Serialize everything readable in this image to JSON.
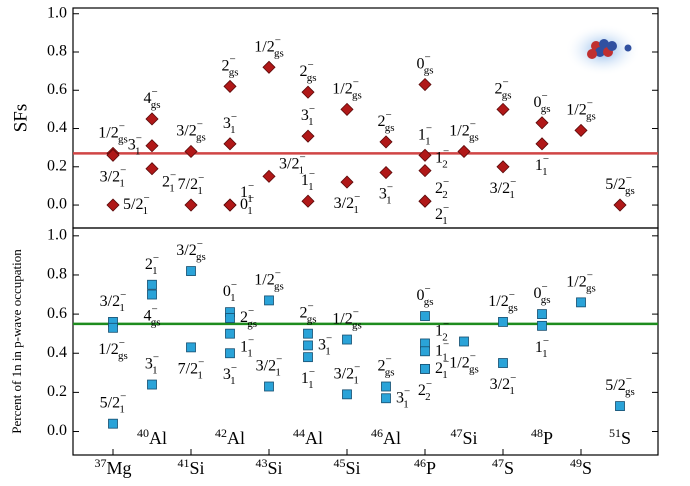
{
  "chart_data": [
    {
      "type": "scatter",
      "ylabel": "SFs",
      "ylim": [
        -0.12,
        1.03
      ],
      "yticks": [
        {
          "value": 0,
          "label": "0.0"
        },
        0.2,
        0.4,
        0.6,
        0.8,
        {
          "value": 1,
          "label": "1.0"
        }
      ],
      "marker": "diamond",
      "color": "#b01818",
      "hline": {
        "value": 0.27,
        "color": "#d04545"
      },
      "groups": [
        [
          {
            "value": 0.27,
            "j": "1/2",
            "parity": "−",
            "sub": "gs"
          },
          {
            "value": 0.26,
            "j": "3/2",
            "parity": "−",
            "sub": "1"
          },
          {
            "value": 0.0,
            "j": "5/2",
            "parity": "−",
            "sub": "1"
          }
        ],
        [
          {
            "value": 0.45,
            "j": "4",
            "parity": "−",
            "sub": "gs"
          },
          {
            "value": 0.31,
            "j": "3",
            "parity": "−",
            "sub": "1"
          },
          {
            "value": 0.19,
            "j": "2",
            "parity": "−",
            "sub": "1"
          }
        ],
        [
          {
            "value": 0.28,
            "j": "3/2",
            "parity": "−",
            "sub": "gs"
          },
          {
            "value": 0.0,
            "j": "7/2",
            "parity": "−",
            "sub": "1"
          }
        ],
        [
          {
            "value": 0.62,
            "j": "2",
            "parity": "−",
            "sub": "gs"
          },
          {
            "value": 0.32,
            "j": "3",
            "parity": "−",
            "sub": "1"
          },
          {
            "value": 0.0,
            "j": "1",
            "parity": "−",
            "sub": "1"
          },
          {
            "value": 0.0,
            "j": "0",
            "parity": "−",
            "sub": "1"
          }
        ],
        [
          {
            "value": 0.72,
            "j": "1/2",
            "parity": "−",
            "sub": "gs"
          },
          {
            "value": 0.15,
            "j": "3/2",
            "parity": "−",
            "sub": "1"
          }
        ],
        [
          {
            "value": 0.59,
            "j": "2",
            "parity": "−",
            "sub": "gs"
          },
          {
            "value": 0.36,
            "j": "3",
            "parity": "−",
            "sub": "1"
          },
          {
            "value": 0.02,
            "j": "1",
            "parity": "−",
            "sub": "1"
          }
        ],
        [
          {
            "value": 0.5,
            "j": "1/2",
            "parity": "−",
            "sub": "gs"
          },
          {
            "value": 0.12,
            "j": "3/2",
            "parity": "−",
            "sub": "1"
          }
        ],
        [
          {
            "value": 0.33,
            "j": "2",
            "parity": "−",
            "sub": "gs"
          },
          {
            "value": 0.17,
            "j": "3",
            "parity": "−",
            "sub": "1"
          }
        ],
        [
          {
            "value": 0.63,
            "j": "0",
            "parity": "−",
            "sub": "gs"
          },
          {
            "value": 0.26,
            "j": "1",
            "parity": "−",
            "sub": "1"
          },
          {
            "value": 0.18,
            "j": "1",
            "parity": "−",
            "sub": "2"
          },
          {
            "value": 0.02,
            "j": "2",
            "parity": "−",
            "sub": "2"
          },
          {
            "value": 0.02,
            "j": "2",
            "parity": "−",
            "sub": "1"
          }
        ],
        [
          {
            "value": 0.28,
            "j": "1/2",
            "parity": "−",
            "sub": "gs"
          }
        ],
        [
          {
            "value": 0.5,
            "j": "2",
            "parity": "−",
            "sub": "gs"
          },
          {
            "value": 0.2,
            "j": "3/2",
            "parity": "−",
            "sub": "1"
          }
        ],
        [
          {
            "value": 0.43,
            "j": "0",
            "parity": "−",
            "sub": "gs"
          },
          {
            "value": 0.32,
            "j": "1",
            "parity": "−",
            "sub": "1"
          }
        ],
        [
          {
            "value": 0.39,
            "j": "1/2",
            "parity": "−",
            "sub": "gs"
          }
        ],
        [
          {
            "value": 0.0,
            "j": "5/2",
            "parity": "−",
            "sub": "gs"
          }
        ]
      ]
    },
    {
      "type": "scatter",
      "ylabel": "Percent of 1n in p-wave occupation",
      "ylim": [
        -0.12,
        1.04
      ],
      "yticks": [
        {
          "value": 0,
          "label": "0.0"
        },
        0.2,
        0.4,
        0.6,
        0.8,
        {
          "value": 1,
          "label": "1.0"
        }
      ],
      "marker": "square",
      "color": "#2aa3d8",
      "hline": {
        "value": 0.55,
        "color": "#1e8c1e"
      },
      "categories": [
        {
          "mass": "37",
          "symbol": "Mg"
        },
        {
          "mass": "40",
          "symbol": "Al"
        },
        {
          "mass": "41",
          "symbol": "Si"
        },
        {
          "mass": "42",
          "symbol": "Al"
        },
        {
          "mass": "43",
          "symbol": "Si"
        },
        {
          "mass": "44",
          "symbol": "Al"
        },
        {
          "mass": "45",
          "symbol": "Si"
        },
        {
          "mass": "46",
          "symbol": "Al"
        },
        {
          "mass": "46",
          "symbol": "P"
        },
        {
          "mass": "47",
          "symbol": "Si"
        },
        {
          "mass": "47",
          "symbol": "S"
        },
        {
          "mass": "48",
          "symbol": "P"
        },
        {
          "mass": "49",
          "symbol": "S"
        },
        {
          "mass": "51",
          "symbol": "S"
        }
      ],
      "groups": [
        [
          {
            "value": 0.56,
            "j": "3/2",
            "parity": "−",
            "sub": "1"
          },
          {
            "value": 0.53,
            "j": "1/2",
            "parity": "−",
            "sub": "gs"
          },
          {
            "value": 0.04,
            "j": "5/2",
            "parity": "−",
            "sub": "1"
          }
        ],
        [
          {
            "value": 0.75,
            "j": "2",
            "parity": "−",
            "sub": "1"
          },
          {
            "value": 0.7,
            "j": "4",
            "parity": "−",
            "sub": "gs"
          },
          {
            "value": 0.24,
            "j": "3",
            "parity": "−",
            "sub": "1"
          }
        ],
        [
          {
            "value": 0.82,
            "j": "3/2",
            "parity": "−",
            "sub": "gs"
          },
          {
            "value": 0.43,
            "j": "7/2",
            "parity": "−",
            "sub": "1"
          }
        ],
        [
          {
            "value": 0.61,
            "j": "0",
            "parity": "−",
            "sub": "1"
          },
          {
            "value": 0.58,
            "j": "2",
            "parity": "−",
            "sub": "gs"
          },
          {
            "value": 0.5,
            "j": "1",
            "parity": "−",
            "sub": "1"
          },
          {
            "value": 0.4,
            "j": "3",
            "parity": "−",
            "sub": "1"
          }
        ],
        [
          {
            "value": 0.67,
            "j": "1/2",
            "parity": "−",
            "sub": "gs"
          },
          {
            "value": 0.23,
            "j": "3/2",
            "parity": "−",
            "sub": "1"
          }
        ],
        [
          {
            "value": 0.5,
            "j": "2",
            "parity": "−",
            "sub": "gs"
          },
          {
            "value": 0.44,
            "j": "3",
            "parity": "−",
            "sub": "1"
          },
          {
            "value": 0.38,
            "j": "1",
            "parity": "−",
            "sub": "1"
          }
        ],
        [
          {
            "value": 0.47,
            "j": "1/2",
            "parity": "−",
            "sub": "gs"
          },
          {
            "value": 0.19,
            "j": "3/2",
            "parity": "−",
            "sub": "1"
          }
        ],
        [
          {
            "value": 0.23,
            "j": "2",
            "parity": "−",
            "sub": "gs"
          },
          {
            "value": 0.17,
            "j": "3",
            "parity": "−",
            "sub": "1"
          }
        ],
        [
          {
            "value": 0.59,
            "j": "0",
            "parity": "−",
            "sub": "gs"
          },
          {
            "value": 0.45,
            "j": "1",
            "parity": "−",
            "sub": "2"
          },
          {
            "value": 0.41,
            "j": "1",
            "parity": "−",
            "sub": "1"
          },
          {
            "value": 0.32,
            "j": "2",
            "parity": "−",
            "sub": "1"
          },
          {
            "value": 0.32,
            "j": "2",
            "parity": "−",
            "sub": "2"
          }
        ],
        [
          {
            "value": 0.46,
            "j": "1/2",
            "parity": "−",
            "sub": "gs"
          }
        ],
        [
          {
            "value": 0.56,
            "j": "1/2",
            "parity": "−",
            "sub": "gs"
          },
          {
            "value": 0.35,
            "j": "3/2",
            "parity": "−",
            "sub": "1"
          }
        ],
        [
          {
            "value": 0.6,
            "j": "0",
            "parity": "−",
            "sub": "gs"
          },
          {
            "value": 0.54,
            "j": "1",
            "parity": "−",
            "sub": "1"
          }
        ],
        [
          {
            "value": 0.66,
            "j": "1/2",
            "parity": "−",
            "sub": "gs"
          }
        ],
        [
          {
            "value": 0.13,
            "j": "5/2",
            "parity": "−",
            "sub": "gs"
          }
        ]
      ]
    }
  ]
}
